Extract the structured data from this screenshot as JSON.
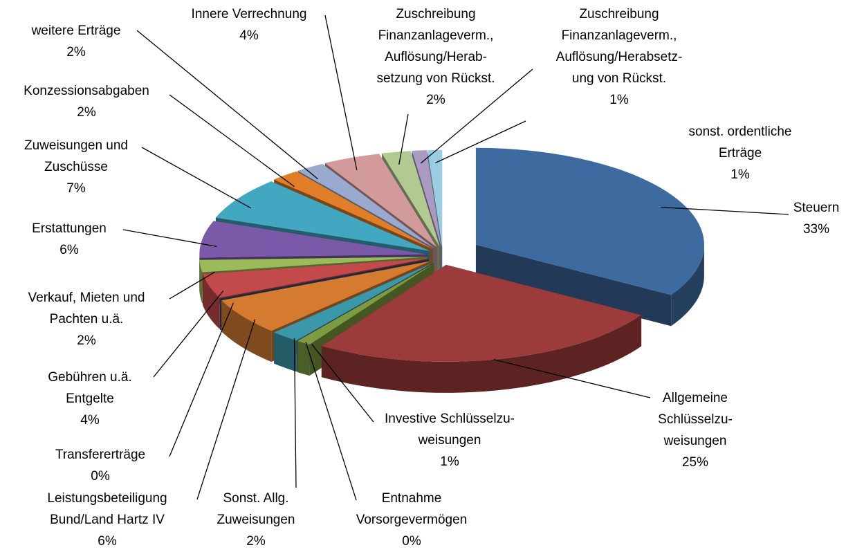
{
  "chart_data": {
    "type": "pie3d",
    "categories": [
      "Steuern",
      "Allgemeine\nSchlüsselzu-\nweisungen",
      "Investive Schlüsselzu-\nweisungen",
      "Entnahme\nVorsorgevermögen",
      "Sonst. Allg.\nZuweisungen",
      "Leistungsbeteiligung\nBund/Land Hartz IV",
      "Transfererträge",
      "Gebühren u.ä.\nEntgelte",
      "Verkauf, Mieten und\nPachten u.ä.",
      "Erstattungen",
      "Zuweisungen und\nZuschüsse",
      "Konzessionsabgaben",
      "weitere Erträge",
      "Innere Verrechnung",
      "Zuschreibung\nFinanzanlageverm.,\nAuflösung/Herab-\nsetzung von Rückst.",
      "Zuschreibung\nFinanzanlageverm.,\nAuflösung/Herabsetz-\nung von Rückst.",
      "sonst. ordentliche\nErträge"
    ],
    "values": [
      33,
      25,
      1,
      0,
      2,
      6,
      0,
      4,
      2,
      6,
      7,
      2,
      2,
      4,
      2,
      1,
      1
    ],
    "value_labels": [
      "33%",
      "25%",
      "1%",
      "0%",
      "2%",
      "6%",
      "0%",
      "4%",
      "2%",
      "6%",
      "7%",
      "2%",
      "2%",
      "4%",
      "2%",
      "1%",
      "1%"
    ],
    "colors": [
      "#3d6a9f",
      "#9b3b3b",
      "#7d9c40",
      "#6b4c90",
      "#3a98aa",
      "#d47b30",
      "#2c4a78",
      "#c24a4a",
      "#9cba5a",
      "#7a5aa8",
      "#42a8c2",
      "#e27e2a",
      "#9aaace",
      "#d29a9a",
      "#b2ca92",
      "#aa9ac2",
      "#9acce2"
    ]
  }
}
